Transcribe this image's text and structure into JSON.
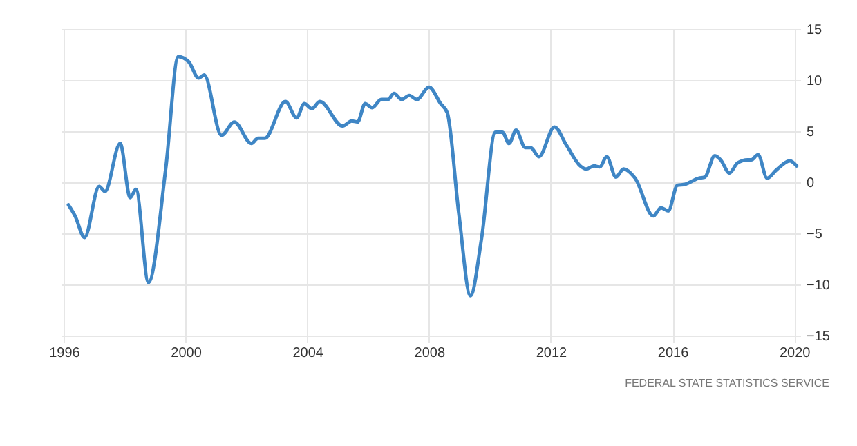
{
  "chart_data": {
    "type": "line",
    "x": [
      1996.15,
      1996.37,
      1996.68,
      1997.16,
      1997.35,
      1997.85,
      1998.18,
      1998.37,
      1998.78,
      1999.35,
      1999.76,
      2000.1,
      2000.43,
      2000.61,
      2001.18,
      2001.6,
      2002.16,
      2002.38,
      2002.6,
      2003.28,
      2003.65,
      2003.9,
      2004.15,
      2004.41,
      2005.16,
      2005.46,
      2005.65,
      2005.9,
      2006.13,
      2006.43,
      2006.65,
      2006.85,
      2007.1,
      2007.35,
      2007.6,
      2008.0,
      2008.38,
      2008.6,
      2008.98,
      2009.36,
      2009.73,
      2010.18,
      2010.41,
      2010.63,
      2010.86,
      2011.16,
      2011.34,
      2011.61,
      2012.12,
      2012.52,
      2012.97,
      2013.16,
      2013.42,
      2013.61,
      2013.84,
      2014.14,
      2014.39,
      2014.77,
      2015.37,
      2015.62,
      2015.86,
      2016.16,
      2016.41,
      2016.86,
      2017.06,
      2017.39,
      2017.58,
      2017.87,
      2018.14,
      2018.47,
      2018.59,
      2018.81,
      2019.11,
      2019.41,
      2019.86,
      2020.08
    ],
    "series": [
      {
        "color": "#3f86c5",
        "values": [
          -2.2,
          -3.3,
          -5.4,
          -0.4,
          -0.9,
          3.8,
          -1.5,
          -0.7,
          -9.8,
          1.4,
          12.3,
          11.8,
          10.2,
          10.5,
          4.6,
          5.9,
          3.8,
          4.3,
          4.3,
          7.9,
          6.3,
          7.7,
          7.2,
          7.9,
          5.5,
          6.0,
          5.9,
          7.7,
          7.3,
          8.1,
          8.1,
          8.7,
          8.1,
          8.5,
          8.1,
          9.3,
          7.7,
          6.8,
          -3.1,
          -11.1,
          -5.4,
          4.9,
          4.9,
          3.8,
          5.1,
          3.4,
          3.4,
          2.5,
          5.4,
          3.6,
          1.6,
          1.3,
          1.6,
          1.5,
          2.5,
          0.5,
          1.3,
          0.4,
          -3.3,
          -2.5,
          -2.8,
          -0.3,
          -0.2,
          0.4,
          0.5,
          2.6,
          2.2,
          0.9,
          1.9,
          2.2,
          2.2,
          2.7,
          0.4,
          1.2,
          2.1,
          1.6
        ]
      }
    ],
    "xlim": [
      1995.9,
      2020.2
    ],
    "xticks": [
      1996,
      2000,
      2004,
      2008,
      2012,
      2016,
      2020
    ],
    "ylim": [
      -15,
      15
    ],
    "yticks": [
      -15,
      -10,
      -5,
      0,
      5,
      10,
      15
    ],
    "grid": true,
    "marker": "none",
    "line_style": "solid",
    "annotations": [
      "FEDERAL STATE STATISTICS SERVICE"
    ]
  }
}
